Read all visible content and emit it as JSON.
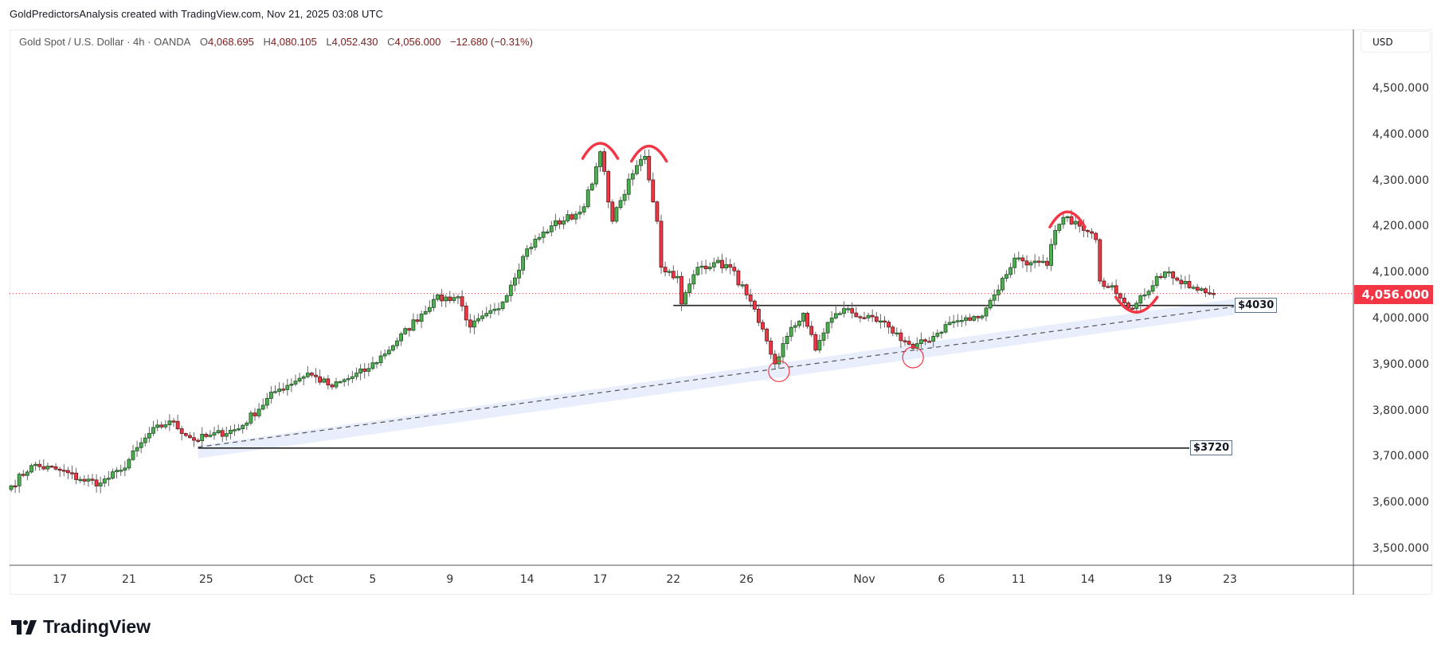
{
  "header": {
    "attribution": "GoldPredictorsAnalysis created with TradingView.com, Nov 21, 2025 03:08 UTC"
  },
  "legend": {
    "symbol": "Gold Spot / U.S. Dollar · 4h · OANDA",
    "open_label": "O",
    "open": "4,068.695",
    "high_label": "H",
    "high": "4,080.105",
    "low_label": "L",
    "low": "4,052.430",
    "close_label": "C",
    "close": "4,056.000",
    "change": "−12.680 (−0.31%)"
  },
  "price_axis": {
    "currency": "USD",
    "current_price": "4,056.000"
  },
  "branding": {
    "logo_text": "TradingView"
  },
  "colors": {
    "up": "#4caf50",
    "down": "#f23645",
    "annotation": "#f23645",
    "band": "#e8eefc"
  },
  "chart_data": {
    "type": "candlestick",
    "title": "Gold Spot / U.S. Dollar · 4h · OANDA",
    "ylim": [
      3460,
      4580
    ],
    "y_ticks": [
      {
        "value": 4500,
        "label": "4,500.000"
      },
      {
        "value": 4400,
        "label": "4,400.000"
      },
      {
        "value": 4300,
        "label": "4,300.000"
      },
      {
        "value": 4200,
        "label": "4,200.000"
      },
      {
        "value": 4100,
        "label": "4,100.000"
      },
      {
        "value": 4000,
        "label": "4,000.000"
      },
      {
        "value": 3900,
        "label": "3,900.000"
      },
      {
        "value": 3800,
        "label": "3,800.000"
      },
      {
        "value": 3700,
        "label": "3,700.000"
      },
      {
        "value": 3600,
        "label": "3,600.000"
      },
      {
        "value": 3500,
        "label": "3,500.000"
      }
    ],
    "x_ticks": [
      {
        "bar": 12,
        "label": "17"
      },
      {
        "bar": 29,
        "label": "21"
      },
      {
        "bar": 48,
        "label": "25"
      },
      {
        "bar": 72,
        "label": "Oct"
      },
      {
        "bar": 89,
        "label": "5"
      },
      {
        "bar": 108,
        "label": "9"
      },
      {
        "bar": 127,
        "label": "14"
      },
      {
        "bar": 145,
        "label": "17"
      },
      {
        "bar": 163,
        "label": "22"
      },
      {
        "bar": 181,
        "label": "26"
      },
      {
        "bar": 210,
        "label": "Nov"
      },
      {
        "bar": 229,
        "label": "6"
      },
      {
        "bar": 248,
        "label": "11"
      },
      {
        "bar": 265,
        "label": "14"
      },
      {
        "bar": 284,
        "label": "19"
      },
      {
        "bar": 300,
        "label": "23"
      }
    ],
    "close_path": [
      [
        0,
        3638
      ],
      [
        5,
        3682
      ],
      [
        12,
        3672
      ],
      [
        17,
        3652
      ],
      [
        22,
        3644
      ],
      [
        27,
        3672
      ],
      [
        34,
        3752
      ],
      [
        39,
        3779
      ],
      [
        45,
        3737
      ],
      [
        48,
        3745
      ],
      [
        56,
        3762
      ],
      [
        65,
        3843
      ],
      [
        73,
        3883
      ],
      [
        79,
        3853
      ],
      [
        88,
        3893
      ],
      [
        95,
        3953
      ],
      [
        104,
        4043
      ],
      [
        110,
        4049
      ],
      [
        113,
        3983
      ],
      [
        120,
        4023
      ],
      [
        127,
        4153
      ],
      [
        133,
        4203
      ],
      [
        140,
        4233
      ],
      [
        143,
        4294
      ],
      [
        145,
        4364
      ],
      [
        148,
        4213
      ],
      [
        150,
        4258
      ],
      [
        154,
        4334
      ],
      [
        156,
        4354
      ],
      [
        159,
        4213
      ],
      [
        160,
        4113
      ],
      [
        164,
        4093
      ],
      [
        165,
        4033
      ],
      [
        169,
        4113
      ],
      [
        173,
        4123
      ],
      [
        177,
        4113
      ],
      [
        181,
        4053
      ],
      [
        184,
        3993
      ],
      [
        188,
        3903
      ],
      [
        191,
        3963
      ],
      [
        195,
        4013
      ],
      [
        198,
        3933
      ],
      [
        201,
        3993
      ],
      [
        205,
        4023
      ],
      [
        210,
        4003
      ],
      [
        216,
        3983
      ],
      [
        222,
        3937
      ],
      [
        227,
        3963
      ],
      [
        231,
        3993
      ],
      [
        238,
        4003
      ],
      [
        242,
        4053
      ],
      [
        247,
        4133
      ],
      [
        251,
        4123
      ],
      [
        255,
        4117
      ],
      [
        257,
        4193
      ],
      [
        260,
        4223
      ],
      [
        264,
        4193
      ],
      [
        267,
        4173
      ],
      [
        268,
        4083
      ],
      [
        271,
        4073
      ],
      [
        276,
        4023
      ],
      [
        279,
        4053
      ],
      [
        282,
        4093
      ],
      [
        285,
        4103
      ],
      [
        288,
        4077
      ],
      [
        292,
        4063
      ],
      [
        296,
        4056
      ]
    ],
    "last_bar": 296,
    "current_price": 4056,
    "levels": [
      {
        "price": 4030,
        "from_bar": 163,
        "to_bar": 301,
        "label": "$4030"
      },
      {
        "price": 3720,
        "from_bar": 46,
        "to_bar": 290,
        "label": "$3720"
      }
    ],
    "trendline": {
      "from": [
        46,
        3722
      ],
      "to": [
        301,
        4027
      ],
      "style": "dashed",
      "band": true
    },
    "top_arcs": [
      {
        "bar": 145,
        "price": 4384
      },
      {
        "bar": 157,
        "price": 4378
      },
      {
        "bar": 260,
        "price": 4235
      }
    ],
    "bottom_arcs": [
      {
        "bar": 277,
        "price": 4017
      }
    ],
    "circles": [
      {
        "bar": 189,
        "price": 3887
      },
      {
        "bar": 222,
        "price": 3917
      }
    ]
  }
}
